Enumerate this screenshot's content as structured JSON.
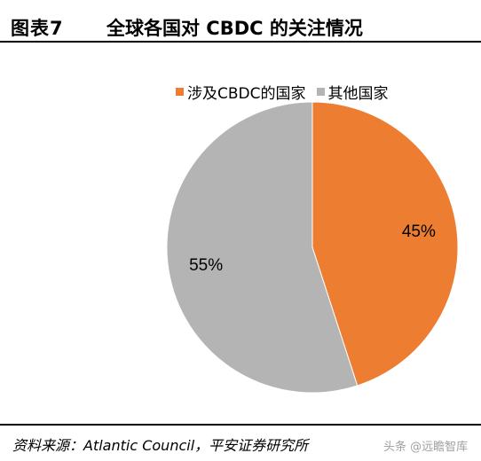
{
  "header": {
    "figure_label": "图表7",
    "title": "全球各国对 CBDC 的关注情况"
  },
  "colors": {
    "involved": "#ED7D31",
    "other": "#B4B4B4"
  },
  "chart_data": {
    "type": "pie",
    "title": "全球各国对 CBDC 的关注情况",
    "legend_position": "top-right",
    "slices": [
      {
        "label": "涉及CBDC的国家",
        "value": 45,
        "display": "45%"
      },
      {
        "label": "其他国家",
        "value": 55,
        "display": "55%"
      }
    ]
  },
  "footer": {
    "source": "资料来源：Atlantic Council，平安证券研究所",
    "watermark": "头条 @远瞻智库"
  }
}
